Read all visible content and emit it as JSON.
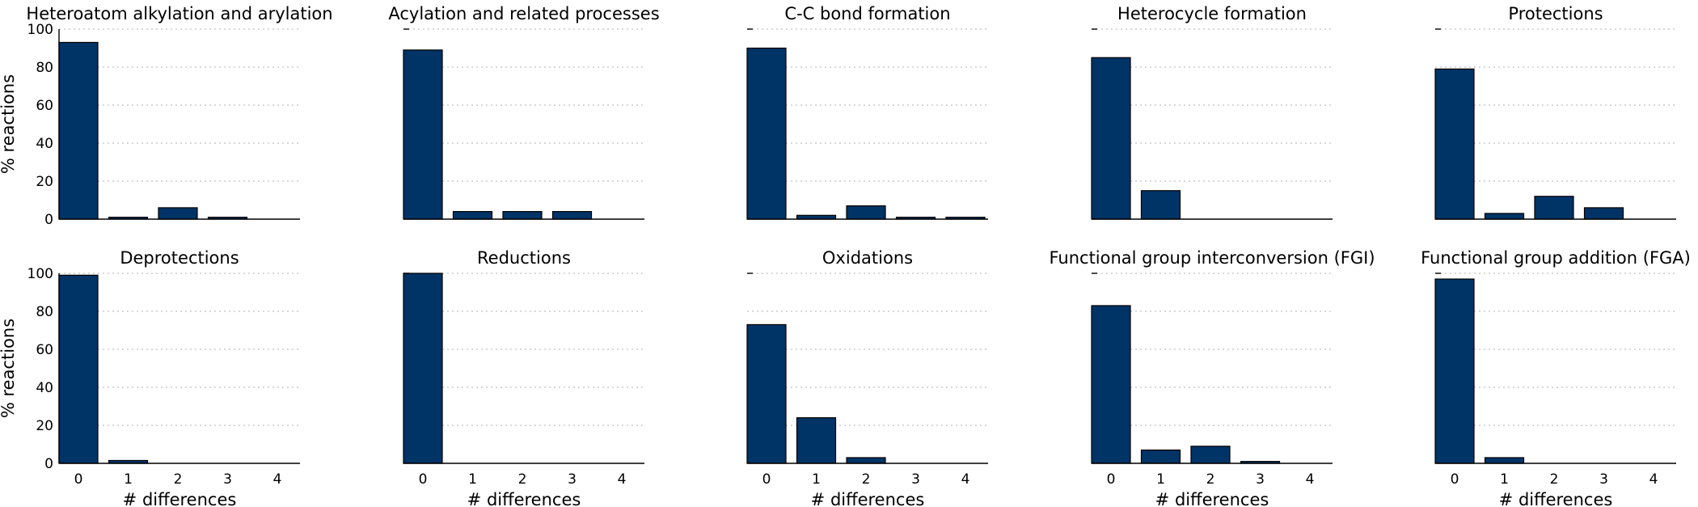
{
  "chart_data": {
    "type": "bar",
    "bar_color": "#003366",
    "ylabel": "% reactions",
    "xlabel": "# differences",
    "ylim": [
      0,
      100
    ],
    "yticks": [
      0,
      20,
      40,
      60,
      80,
      100
    ],
    "grid": true,
    "categories": [
      "0",
      "1",
      "2",
      "3",
      "4"
    ],
    "panels": [
      {
        "title": "Heteroatom alkylation and arylation",
        "values": [
          93,
          1,
          6,
          1,
          0
        ]
      },
      {
        "title": "Acylation and related processes",
        "values": [
          89,
          4,
          4,
          4,
          0
        ]
      },
      {
        "title": "C-C bond formation",
        "values": [
          90,
          2,
          7,
          1,
          1
        ]
      },
      {
        "title": "Heterocycle formation",
        "values": [
          85,
          15,
          0,
          0,
          0
        ]
      },
      {
        "title": "Protections",
        "values": [
          79,
          3,
          12,
          6,
          0
        ]
      },
      {
        "title": "Deprotections",
        "values": [
          99,
          1.5,
          0,
          0,
          0
        ]
      },
      {
        "title": "Reductions",
        "values": [
          100,
          0,
          0,
          0,
          0
        ]
      },
      {
        "title": "Oxidations",
        "values": [
          73,
          24,
          3,
          0,
          0
        ]
      },
      {
        "title": "Functional group interconversion (FGI)",
        "values": [
          83,
          7,
          9,
          1,
          0
        ]
      },
      {
        "title": "Functional group addition (FGA)",
        "values": [
          97,
          3,
          0,
          0,
          0
        ]
      }
    ]
  }
}
